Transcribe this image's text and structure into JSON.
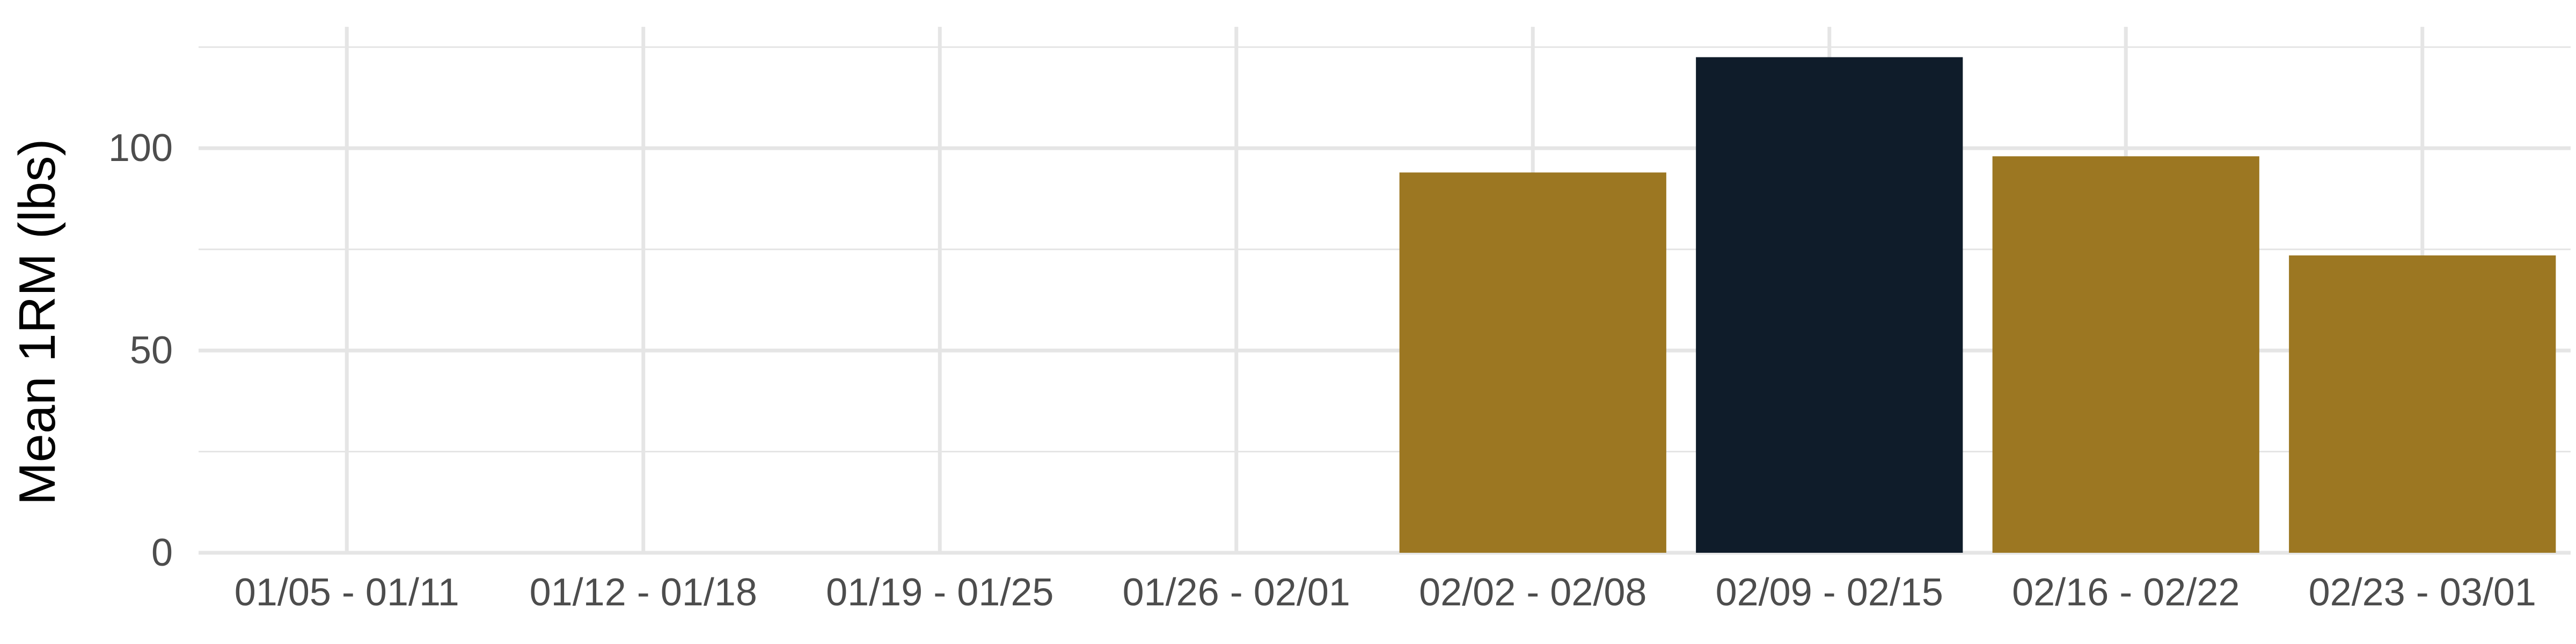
{
  "chart_data": {
    "type": "bar",
    "title": "",
    "xlabel": "",
    "ylabel": "Mean 1RM (lbs)",
    "categories": [
      "01/05 - 01/11",
      "01/12 - 01/18",
      "01/19 - 01/25",
      "01/26 - 02/01",
      "02/02 - 02/08",
      "02/09 - 02/15",
      "02/16 - 02/22",
      "02/23 - 03/01"
    ],
    "values": [
      null,
      null,
      null,
      null,
      94,
      122.5,
      98,
      73.5
    ],
    "highlight_index": 5,
    "ylim": [
      0,
      130
    ],
    "yticks": [
      0,
      50,
      100
    ],
    "grid": true,
    "legend": "none",
    "colors": {
      "bar": "#9c7722",
      "highlight": "#0f1c2a",
      "grid": "#e5e5e5",
      "tick_text": "#4d4d4d"
    }
  }
}
